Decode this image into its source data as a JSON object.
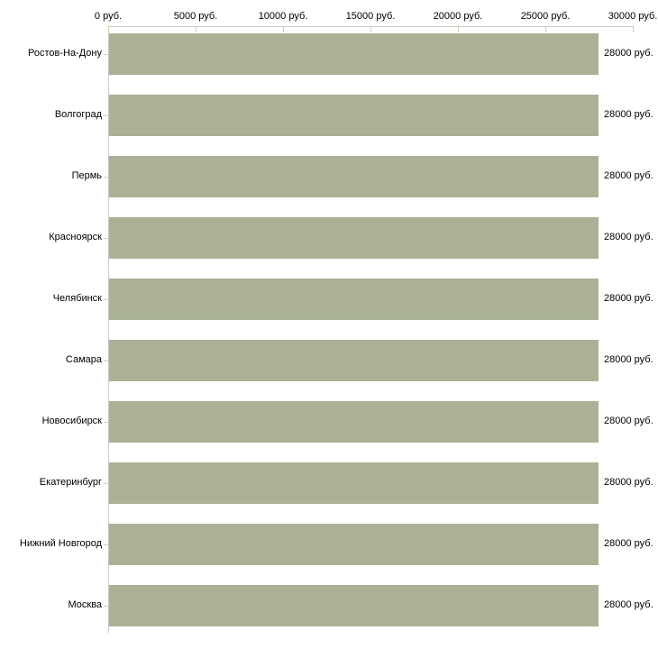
{
  "chart_data": {
    "type": "bar",
    "orientation": "horizontal",
    "title": "",
    "xlabel": "",
    "ylabel": "",
    "unit_suffix": " руб.",
    "categories": [
      "Ростов-На-Дону",
      "Волгоград",
      "Пермь",
      "Красноярск",
      "Челябинск",
      "Самара",
      "Новосибирск",
      "Екатеринбург",
      "Нижний Новгород",
      "Москва"
    ],
    "values": [
      28000,
      28000,
      28000,
      28000,
      28000,
      28000,
      28000,
      28000,
      28000,
      28000
    ],
    "value_labels": [
      "28000 руб.",
      "28000 руб.",
      "28000 руб.",
      "28000 руб.",
      "28000 руб.",
      "28000 руб.",
      "28000 руб.",
      "28000 руб.",
      "28000 руб.",
      "28000 руб."
    ],
    "x_ticks": [
      "0 руб.",
      "5000 руб.",
      "10000 руб.",
      "15000 руб.",
      "20000 руб.",
      "25000 руб.",
      "30000 руб."
    ],
    "xlim": [
      0,
      30000
    ],
    "grid": false,
    "legend": null,
    "colors": {
      "bar_fill": "#aab194",
      "axis_line": "#c9c9c9",
      "tick_mark": "#cfcfad",
      "text": "#000000",
      "background": "#ffffff"
    }
  }
}
